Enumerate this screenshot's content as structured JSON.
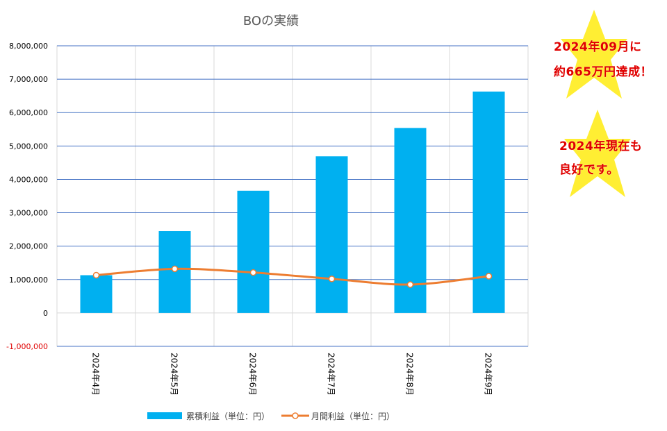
{
  "chart_data": {
    "type": "bar",
    "title": "BOの実績",
    "categories": [
      "2024年4月",
      "2024年5月",
      "2024年6月",
      "2024年7月",
      "2024年8月",
      "2024年9月"
    ],
    "ylim": [
      -1000000,
      8000000
    ],
    "yticks": [
      -1000000,
      0,
      1000000,
      2000000,
      3000000,
      4000000,
      5000000,
      6000000,
      7000000,
      8000000
    ],
    "ytick_labels": [
      "-1,000,000",
      "0",
      "1,000,000",
      "2,000,000",
      "3,000,000",
      "4,000,000",
      "5,000,000",
      "6,000,000",
      "7,000,000",
      "8,000,000"
    ],
    "grid": true,
    "legend_position": "bottom",
    "series": [
      {
        "name": "累積利益（単位：円）",
        "kind": "bar",
        "color": "#00b0f0",
        "values": [
          1130000,
          2450000,
          3660000,
          4690000,
          5540000,
          6630000
        ]
      },
      {
        "name": "月間利益（単位：円）",
        "kind": "line",
        "color": "#ed7d31",
        "values": [
          1130000,
          1320000,
          1210000,
          1020000,
          850000,
          1100000
        ]
      }
    ]
  },
  "annotations": {
    "star1_line1": "2024年09月に",
    "star1_line2": "約665万円達成！",
    "star2_line1": "2024年現在も",
    "star2_line2": "良好です。",
    "star_color": "#ffee33",
    "text_color": "#e00000"
  }
}
